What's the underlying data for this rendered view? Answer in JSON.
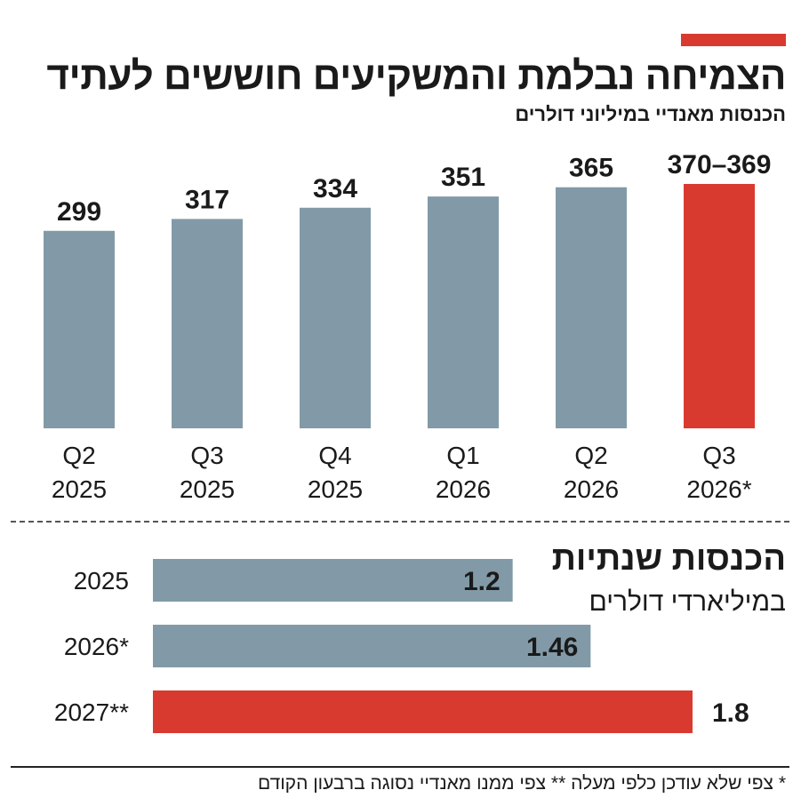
{
  "title": "הצמיחה נבלמת והמשקיעים חוששים לעתיד",
  "subtitle": "הכנסות מאנדיי במיליוני דולרים",
  "colors": {
    "gray": "#829aa7",
    "red": "#d93a30",
    "text": "#1a1a1a"
  },
  "chart_data": [
    {
      "type": "bar",
      "categories": [
        {
          "quarter": "Q2",
          "year": "2025"
        },
        {
          "quarter": "Q3",
          "year": "2025"
        },
        {
          "quarter": "Q4",
          "year": "2025"
        },
        {
          "quarter": "Q1",
          "year": "2026"
        },
        {
          "quarter": "Q2",
          "year": "2026"
        },
        {
          "quarter": "Q3",
          "year": "2026*"
        }
      ],
      "values": [
        299,
        317,
        334,
        351,
        365,
        370
      ],
      "value_labels": [
        "299",
        "317",
        "334",
        "351",
        "365",
        "370–369"
      ],
      "highlight_index": 5,
      "title": "",
      "xlabel": "",
      "ylabel": "",
      "ylim": [
        0,
        370
      ],
      "grid": false
    },
    {
      "type": "bar",
      "orientation": "horizontal",
      "title": "הכנסות שנתיות",
      "subtitle": "במיליארדי דולרים",
      "categories": [
        "2025",
        "2026*",
        "2027**"
      ],
      "values": [
        1.2,
        1.46,
        1.8
      ],
      "value_labels": [
        "1.2",
        "1.46",
        "1.8"
      ],
      "highlight_index": 2,
      "xlim": [
        0,
        1.8
      ],
      "grid": false
    }
  ],
  "footnote": "* צפי שלא עודכן כלפי מעלה ** צפי ממנו מאנדיי נסוגה ברבעון הקודם"
}
